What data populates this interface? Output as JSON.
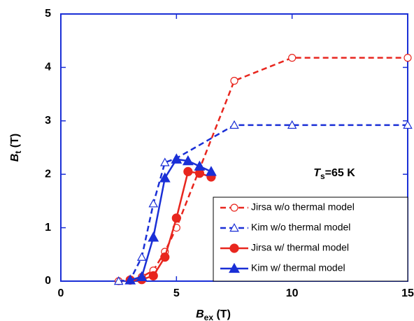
{
  "chart_data": {
    "type": "line",
    "xlabel": {
      "main": "B",
      "sub": "ex",
      "unit": "(T)"
    },
    "ylabel": {
      "main": "B",
      "sub": "t",
      "unit": "(T)"
    },
    "annotation": {
      "main": "T",
      "sub": "s",
      "rest": "=65 K"
    },
    "xlim": [
      0,
      15
    ],
    "xticks": [
      0,
      5,
      10,
      15
    ],
    "ylim": [
      0,
      5
    ],
    "yticks": [
      0,
      1,
      2,
      3,
      4,
      5
    ],
    "legend": "lower right",
    "series": [
      {
        "name": "Jirsa w/o thermal model",
        "color": "#e8261e",
        "dashed": true,
        "marker": "circle",
        "filled": false,
        "x": [
          2.5,
          3,
          3.5,
          4,
          4.5,
          5,
          7.5,
          10,
          15
        ],
        "values": [
          0,
          0.02,
          0.08,
          0.2,
          0.55,
          1.0,
          3.75,
          4.18,
          4.18
        ]
      },
      {
        "name": "Kim w/o thermal model",
        "color": "#1a2fd6",
        "dashed": true,
        "marker": "triangle",
        "filled": false,
        "x": [
          2.5,
          3,
          3.5,
          4,
          4.5,
          5,
          7.5,
          10,
          15
        ],
        "values": [
          0,
          0.02,
          0.45,
          1.45,
          2.22,
          2.3,
          2.92,
          2.92,
          2.92
        ]
      },
      {
        "name": "Jirsa w/ thermal model",
        "color": "#e8261e",
        "dashed": false,
        "marker": "circle",
        "filled": true,
        "x": [
          3,
          3.5,
          4,
          4.5,
          5,
          5.5,
          6,
          6.5
        ],
        "values": [
          0.02,
          0.03,
          0.1,
          0.45,
          1.18,
          2.05,
          2.02,
          1.95
        ]
      },
      {
        "name": "Kim w/ thermal model",
        "color": "#1a2fd6",
        "dashed": false,
        "marker": "triangle",
        "filled": true,
        "x": [
          3,
          3.5,
          4,
          4.5,
          5,
          5.5,
          6,
          6.5
        ],
        "values": [
          0.02,
          0.08,
          0.82,
          1.93,
          2.28,
          2.25,
          2.15,
          2.05
        ]
      }
    ]
  }
}
